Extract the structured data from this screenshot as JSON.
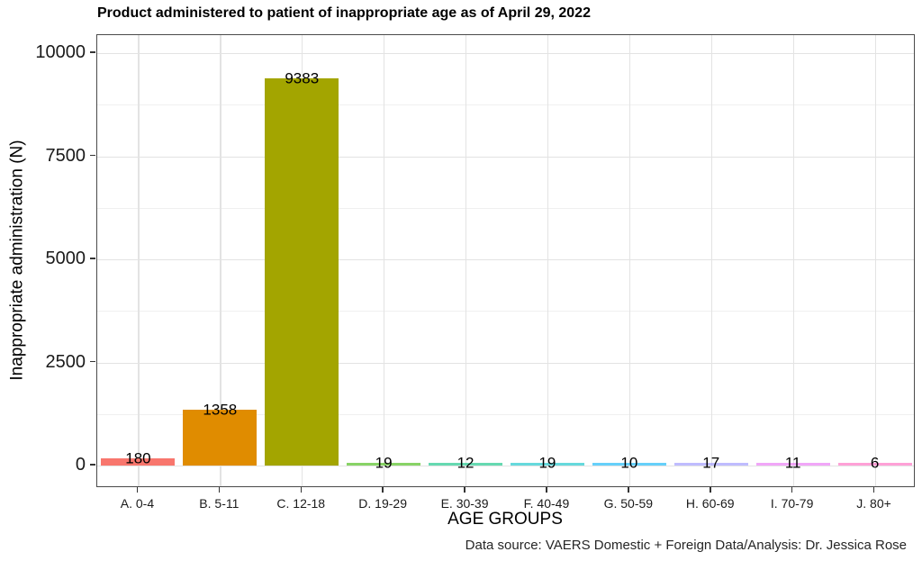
{
  "chart_data": {
    "type": "bar",
    "title": "Product administered to patient of inappropriate age as of April 29, 2022",
    "xlabel": "AGE GROUPS",
    "ylabel": "Inappropriate administration (N)",
    "caption": "Data source: VAERS Domestic + Foreign Data/Analysis: Dr. Jessica Rose",
    "categories": [
      "A. 0-4",
      "B. 5-11",
      "C. 12-18",
      "D. 19-29",
      "E. 30-39",
      "F. 40-49",
      "G. 50-59",
      "H. 60-69",
      "I. 70-79",
      "J. 80+"
    ],
    "values": [
      180,
      1358,
      9383,
      19,
      12,
      19,
      10,
      17,
      11,
      6
    ],
    "bar_colors": [
      "#F8766D",
      "#E08C00",
      "#A3A500",
      "#39B600",
      "#00BF7D",
      "#00BFC4",
      "#00B0F6",
      "#9590FF",
      "#E76BF3",
      "#FF62BC"
    ],
    "ylim": [
      0,
      10000
    ],
    "yticks": [
      0,
      2500,
      5000,
      7500,
      10000
    ],
    "grid": "major and minor horizontal, major vertical at categories",
    "legend": "none",
    "panel_border_color": "#4a4a4a",
    "gridline_color": "#e3e3e3"
  }
}
